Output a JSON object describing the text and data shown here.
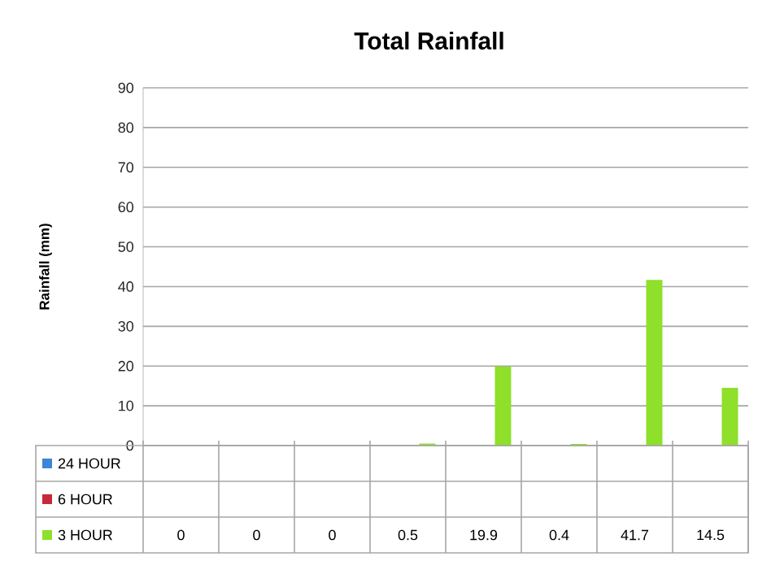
{
  "chart_data": {
    "type": "bar",
    "title": "Total Rainfall",
    "ylabel": "Rainfall (mm)",
    "categories": [
      null,
      null,
      null,
      null,
      null,
      null,
      null,
      null
    ],
    "series": [
      {
        "name": "24 HOUR",
        "color": "#3d85d6",
        "values": [
          null,
          null,
          null,
          null,
          null,
          null,
          null,
          null
        ]
      },
      {
        "name": "6 HOUR",
        "color": "#c8283c",
        "values": [
          null,
          null,
          null,
          null,
          null,
          null,
          null,
          null
        ]
      },
      {
        "name": "3 HOUR",
        "color": "#8ee02a",
        "values": [
          0,
          0,
          0,
          0.5,
          19.9,
          0.4,
          41.7,
          14.5
        ]
      }
    ],
    "ylim": [
      0,
      90
    ],
    "yticks": [
      0,
      10,
      20,
      30,
      40,
      50,
      60,
      70,
      80,
      90
    ],
    "grid": "y",
    "legend": "bottom",
    "data_labels": true
  }
}
